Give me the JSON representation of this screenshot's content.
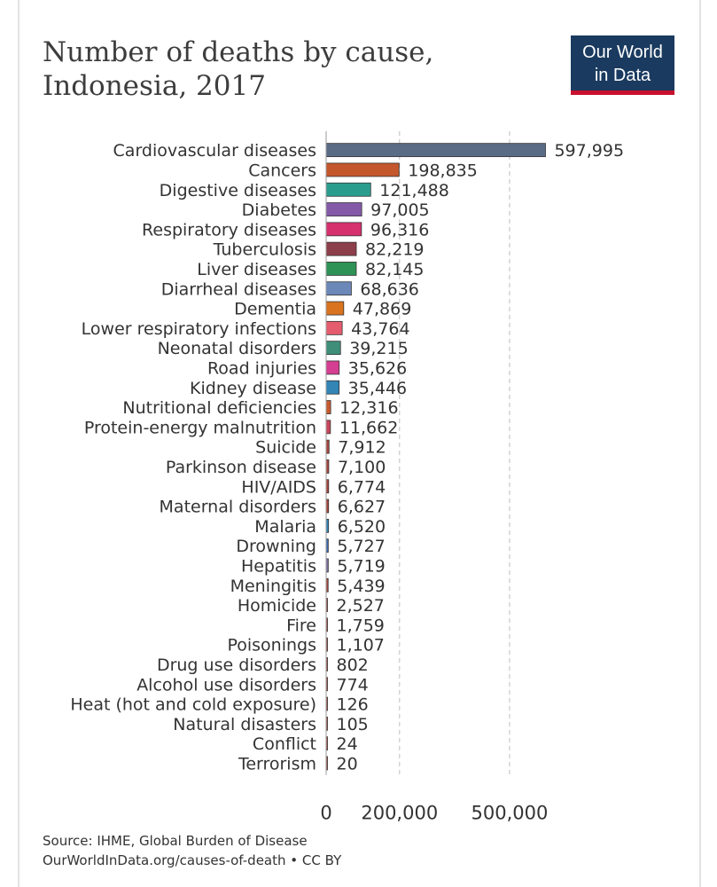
{
  "header": {
    "title_line1": "Number of deaths by cause,",
    "title_line2": "Indonesia, 2017",
    "logo_line1": "Our World",
    "logo_line2": "in Data"
  },
  "footer": {
    "source": "Source: IHME, Global Burden of Disease",
    "link": "OurWorldInData.org/causes-of-death • CC BY"
  },
  "colors": {
    "grid": "#c8c8c8",
    "text": "#333333"
  },
  "chart_data": {
    "type": "bar",
    "orientation": "horizontal",
    "title": "Number of deaths by cause, Indonesia, 2017",
    "xlim": [
      0,
      650000
    ],
    "x_ticks": [
      0,
      200000,
      500000
    ],
    "x_tick_labels": [
      "0",
      "200,000",
      "500,000"
    ],
    "grid": true,
    "categories": [
      "Cardiovascular diseases",
      "Cancers",
      "Digestive diseases",
      "Diabetes",
      "Respiratory diseases",
      "Tuberculosis",
      "Liver diseases",
      "Diarrheal diseases",
      "Dementia",
      "Lower respiratory infections",
      "Neonatal disorders",
      "Road injuries",
      "Kidney disease",
      "Nutritional deficiencies",
      "Protein-energy malnutrition",
      "Suicide",
      "Parkinson disease",
      "HIV/AIDS",
      "Maternal disorders",
      "Malaria",
      "Drowning",
      "Hepatitis",
      "Meningitis",
      "Homicide",
      "Fire",
      "Poisonings",
      "Drug use disorders",
      "Alcohol use disorders",
      "Heat (hot and cold exposure)",
      "Natural disasters",
      "Conflict",
      "Terrorism"
    ],
    "values": [
      597995,
      198835,
      121488,
      97005,
      96316,
      82219,
      82145,
      68636,
      47869,
      43764,
      39215,
      35626,
      35446,
      12316,
      11662,
      7912,
      7100,
      6774,
      6627,
      6520,
      5727,
      5719,
      5439,
      2527,
      1759,
      1107,
      802,
      774,
      126,
      105,
      24,
      20
    ],
    "value_labels": [
      "597,995",
      "198,835",
      "121,488",
      "97,005",
      "96,316",
      "82,219",
      "82,145",
      "68,636",
      "47,869",
      "43,764",
      "39,215",
      "35,626",
      "35,446",
      "12,316",
      "11,662",
      "7,912",
      "7,100",
      "6,774",
      "6,627",
      "6,520",
      "5,727",
      "5,719",
      "5,439",
      "2,527",
      "1,759",
      "1,107",
      "802",
      "774",
      "126",
      "105",
      "24",
      "20"
    ],
    "bar_colors": [
      "#5a6b85",
      "#c4572b",
      "#2a9d8f",
      "#8459a8",
      "#d6306f",
      "#8c3f4a",
      "#2e9156",
      "#6b88b8",
      "#d9731f",
      "#e55c6e",
      "#3e8e7a",
      "#d43f91",
      "#3285b5",
      "#c85a2c",
      "#c9465c",
      "#a8463e",
      "#a8463e",
      "#a8463e",
      "#a8463e",
      "#3285b5",
      "#3e6ab0",
      "#7a6e9e",
      "#a8463e",
      "#a8463e",
      "#a8463e",
      "#a8463e",
      "#a8463e",
      "#a8463e",
      "#a8463e",
      "#a8463e",
      "#a8463e",
      "#a8463e"
    ]
  }
}
